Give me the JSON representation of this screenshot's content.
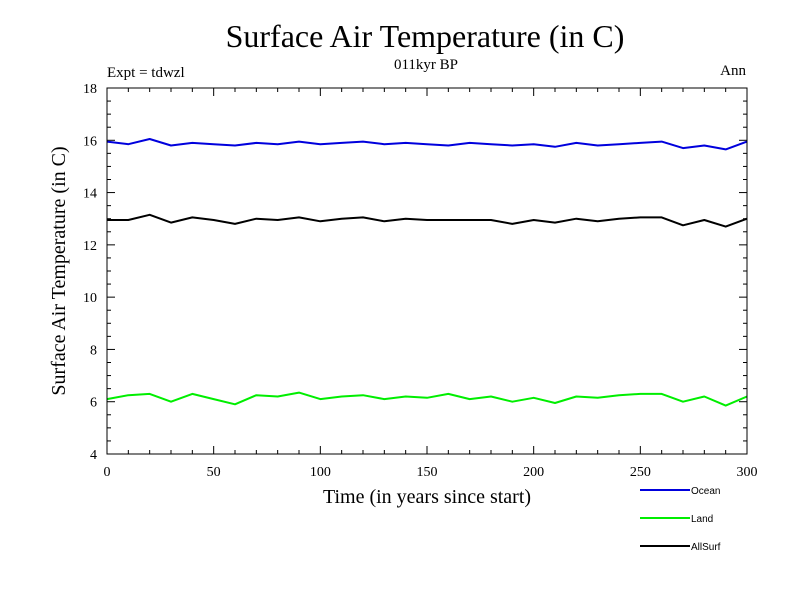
{
  "chart_data": {
    "type": "line",
    "title": "Surface Air Temperature (in C)",
    "subtitle_left": "Expt = tdwzl",
    "subtitle_center": "011kyr BP",
    "subtitle_right": "Ann",
    "xlabel": "Time (in years since start)",
    "ylabel": "Surface Air Temperature (in C)",
    "xlim": [
      0,
      300
    ],
    "ylim": [
      4,
      18
    ],
    "xticks": [
      0,
      50,
      100,
      150,
      200,
      250,
      300
    ],
    "yticks": [
      4,
      6,
      8,
      10,
      12,
      14,
      16,
      18
    ],
    "legend_position": "below-right",
    "x": [
      0,
      10,
      20,
      30,
      40,
      50,
      60,
      70,
      80,
      90,
      100,
      110,
      120,
      130,
      140,
      150,
      160,
      170,
      180,
      190,
      200,
      210,
      220,
      230,
      240,
      250,
      260,
      270,
      280,
      290,
      300
    ],
    "series": [
      {
        "name": "Ocean",
        "color": "#0000dd",
        "values": [
          15.95,
          15.85,
          16.05,
          15.8,
          15.9,
          15.85,
          15.8,
          15.9,
          15.85,
          15.95,
          15.85,
          15.9,
          15.95,
          15.85,
          15.9,
          15.85,
          15.8,
          15.9,
          15.85,
          15.8,
          15.85,
          15.75,
          15.9,
          15.8,
          15.85,
          15.9,
          15.95,
          15.7,
          15.8,
          15.65,
          15.95
        ]
      },
      {
        "name": "Land",
        "color": "#00ee00",
        "values": [
          6.1,
          6.25,
          6.3,
          6.0,
          6.3,
          6.1,
          5.9,
          6.25,
          6.2,
          6.35,
          6.1,
          6.2,
          6.25,
          6.1,
          6.2,
          6.15,
          6.3,
          6.1,
          6.2,
          6.0,
          6.15,
          5.95,
          6.2,
          6.15,
          6.25,
          6.3,
          6.3,
          6.0,
          6.2,
          5.85,
          6.2
        ]
      },
      {
        "name": "AllSurf",
        "color": "#000000",
        "values": [
          12.95,
          12.95,
          13.15,
          12.85,
          13.05,
          12.95,
          12.8,
          13.0,
          12.95,
          13.05,
          12.9,
          13.0,
          13.05,
          12.9,
          13.0,
          12.95,
          12.95,
          12.95,
          12.95,
          12.8,
          12.95,
          12.85,
          13.0,
          12.9,
          13.0,
          13.05,
          13.05,
          12.75,
          12.95,
          12.7,
          13.0
        ]
      }
    ]
  }
}
